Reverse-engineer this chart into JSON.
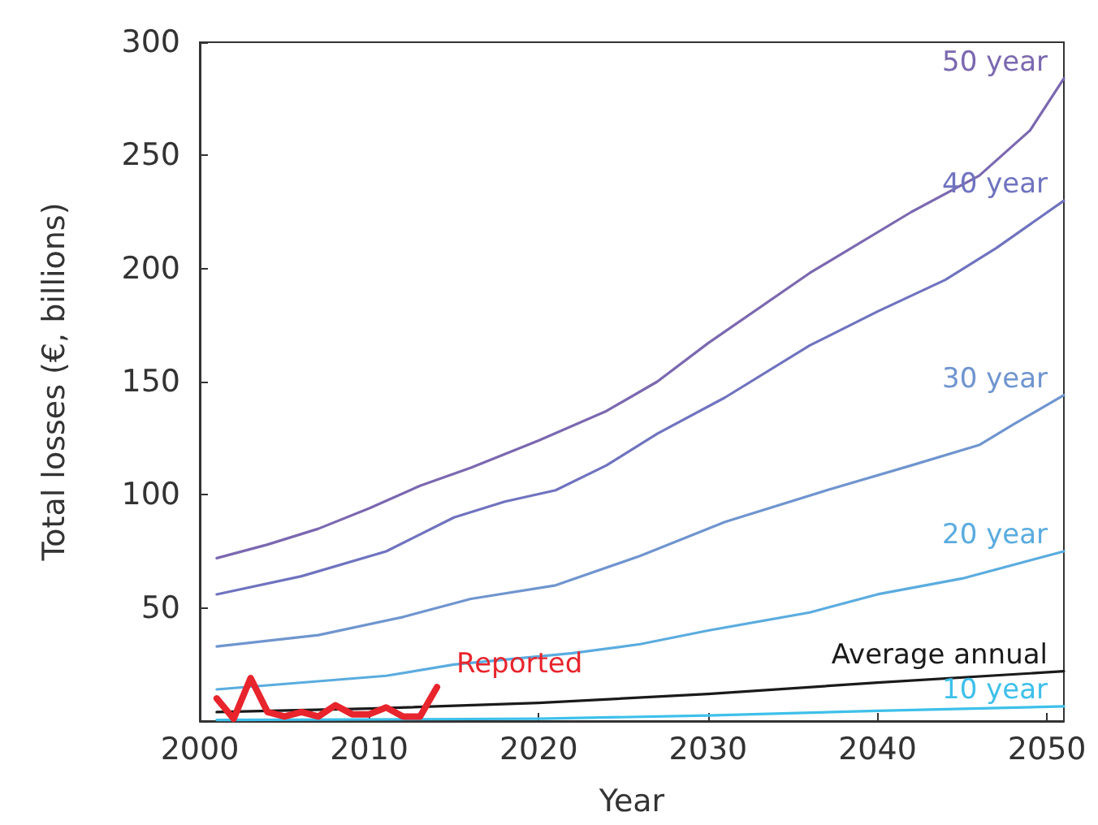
{
  "chart_data": {
    "type": "line",
    "xlabel": "Year",
    "ylabel": "Total losses (€, billions)",
    "xlim": [
      2000,
      2051
    ],
    "xticks": [
      2000,
      2010,
      2020,
      2030,
      2040,
      2050
    ],
    "ylim": [
      0,
      300
    ],
    "yticks": [
      50,
      100,
      150,
      200,
      250,
      300
    ],
    "grid": false,
    "legend": false,
    "marker": "none",
    "line_style": "solid",
    "series": [
      {
        "name": "50 year",
        "color": "#7b68b0",
        "x": [
          2001,
          2004,
          2007,
          2010,
          2013,
          2016,
          2020,
          2024,
          2027,
          2030,
          2036,
          2042,
          2046,
          2049,
          2051
        ],
        "values": [
          72,
          78,
          85,
          94,
          104,
          112,
          124,
          137,
          150,
          167,
          198,
          225,
          241,
          261,
          284
        ]
      },
      {
        "name": "40 year",
        "color": "#6f73bf",
        "x": [
          2001,
          2006,
          2011,
          2015,
          2018,
          2021,
          2024,
          2027,
          2031,
          2036,
          2040,
          2044,
          2047,
          2051
        ],
        "values": [
          56,
          64,
          75,
          90,
          97,
          102,
          113,
          127,
          143,
          166,
          181,
          195,
          209,
          230
        ]
      },
      {
        "name": "30 year",
        "color": "#6f95cf",
        "x": [
          2001,
          2007,
          2012,
          2016,
          2021,
          2026,
          2031,
          2037,
          2042,
          2046,
          2048,
          2051
        ],
        "values": [
          33,
          38,
          46,
          54,
          60,
          73,
          88,
          102,
          113,
          122,
          131,
          144
        ]
      },
      {
        "name": "20 year",
        "color": "#5aacdf",
        "x": [
          2001,
          2011,
          2015,
          2022,
          2026,
          2030,
          2036,
          2040,
          2045,
          2051
        ],
        "values": [
          14,
          20,
          25,
          30,
          34,
          40,
          48,
          56,
          63,
          75
        ]
      },
      {
        "name": "Average annual",
        "color": "#1a1a1a",
        "x": [
          2001,
          2010,
          2020,
          2030,
          2040,
          2051
        ],
        "values": [
          4,
          5.5,
          8,
          12,
          17,
          22
        ]
      },
      {
        "name": "10 year",
        "color": "#3ec0ea",
        "x": [
          2001,
          2020,
          2030,
          2040,
          2051
        ],
        "values": [
          0.5,
          1,
          2.5,
          4.5,
          6.5
        ]
      },
      {
        "name": "Reported",
        "color": "#e8242c",
        "x": [
          2001,
          2002,
          2003,
          2004,
          2005,
          2006,
          2007,
          2008,
          2009,
          2010,
          2011,
          2012,
          2013,
          2014
        ],
        "values": [
          10,
          1,
          19,
          4,
          2,
          4,
          2,
          7,
          3,
          3,
          6,
          2,
          2,
          15
        ]
      }
    ]
  }
}
